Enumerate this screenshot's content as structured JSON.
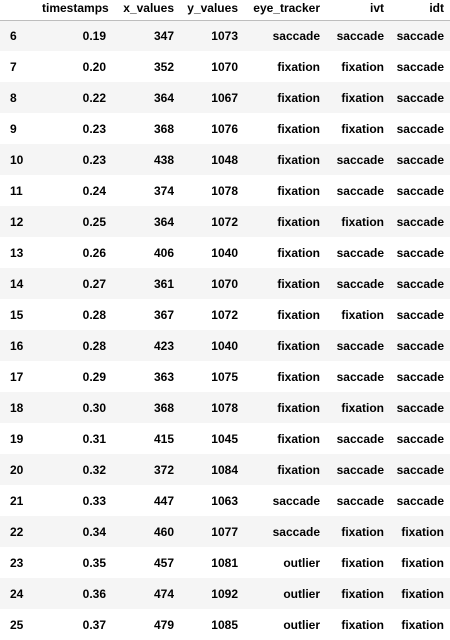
{
  "table": {
    "columns": [
      "",
      "timestamps",
      "x_values",
      "y_values",
      "eye_tracker",
      "ivt",
      "idt"
    ],
    "rows": [
      {
        "index": "6",
        "timestamps": "0.19",
        "x_values": "347",
        "y_values": "1073",
        "eye_tracker": "saccade",
        "ivt": "saccade",
        "idt": "saccade"
      },
      {
        "index": "7",
        "timestamps": "0.20",
        "x_values": "352",
        "y_values": "1070",
        "eye_tracker": "fixation",
        "ivt": "fixation",
        "idt": "saccade"
      },
      {
        "index": "8",
        "timestamps": "0.22",
        "x_values": "364",
        "y_values": "1067",
        "eye_tracker": "fixation",
        "ivt": "fixation",
        "idt": "saccade"
      },
      {
        "index": "9",
        "timestamps": "0.23",
        "x_values": "368",
        "y_values": "1076",
        "eye_tracker": "fixation",
        "ivt": "fixation",
        "idt": "saccade"
      },
      {
        "index": "10",
        "timestamps": "0.23",
        "x_values": "438",
        "y_values": "1048",
        "eye_tracker": "fixation",
        "ivt": "saccade",
        "idt": "saccade"
      },
      {
        "index": "11",
        "timestamps": "0.24",
        "x_values": "374",
        "y_values": "1078",
        "eye_tracker": "fixation",
        "ivt": "saccade",
        "idt": "saccade"
      },
      {
        "index": "12",
        "timestamps": "0.25",
        "x_values": "364",
        "y_values": "1072",
        "eye_tracker": "fixation",
        "ivt": "fixation",
        "idt": "saccade"
      },
      {
        "index": "13",
        "timestamps": "0.26",
        "x_values": "406",
        "y_values": "1040",
        "eye_tracker": "fixation",
        "ivt": "saccade",
        "idt": "saccade"
      },
      {
        "index": "14",
        "timestamps": "0.27",
        "x_values": "361",
        "y_values": "1070",
        "eye_tracker": "fixation",
        "ivt": "saccade",
        "idt": "saccade"
      },
      {
        "index": "15",
        "timestamps": "0.28",
        "x_values": "367",
        "y_values": "1072",
        "eye_tracker": "fixation",
        "ivt": "fixation",
        "idt": "saccade"
      },
      {
        "index": "16",
        "timestamps": "0.28",
        "x_values": "423",
        "y_values": "1040",
        "eye_tracker": "fixation",
        "ivt": "saccade",
        "idt": "saccade"
      },
      {
        "index": "17",
        "timestamps": "0.29",
        "x_values": "363",
        "y_values": "1075",
        "eye_tracker": "fixation",
        "ivt": "saccade",
        "idt": "saccade"
      },
      {
        "index": "18",
        "timestamps": "0.30",
        "x_values": "368",
        "y_values": "1078",
        "eye_tracker": "fixation",
        "ivt": "fixation",
        "idt": "saccade"
      },
      {
        "index": "19",
        "timestamps": "0.31",
        "x_values": "415",
        "y_values": "1045",
        "eye_tracker": "fixation",
        "ivt": "saccade",
        "idt": "saccade"
      },
      {
        "index": "20",
        "timestamps": "0.32",
        "x_values": "372",
        "y_values": "1084",
        "eye_tracker": "fixation",
        "ivt": "saccade",
        "idt": "saccade"
      },
      {
        "index": "21",
        "timestamps": "0.33",
        "x_values": "447",
        "y_values": "1063",
        "eye_tracker": "saccade",
        "ivt": "saccade",
        "idt": "saccade"
      },
      {
        "index": "22",
        "timestamps": "0.34",
        "x_values": "460",
        "y_values": "1077",
        "eye_tracker": "saccade",
        "ivt": "fixation",
        "idt": "fixation"
      },
      {
        "index": "23",
        "timestamps": "0.35",
        "x_values": "457",
        "y_values": "1081",
        "eye_tracker": "outlier",
        "ivt": "fixation",
        "idt": "fixation"
      },
      {
        "index": "24",
        "timestamps": "0.36",
        "x_values": "474",
        "y_values": "1092",
        "eye_tracker": "outlier",
        "ivt": "fixation",
        "idt": "fixation"
      },
      {
        "index": "25",
        "timestamps": "0.37",
        "x_values": "479",
        "y_values": "1085",
        "eye_tracker": "outlier",
        "ivt": "fixation",
        "idt": "fixation"
      }
    ]
  },
  "colors": {
    "row_stripe": "#f5f5f5",
    "row_plain": "#ffffff",
    "header_border": "#bdbdbd",
    "text": "#000000"
  }
}
